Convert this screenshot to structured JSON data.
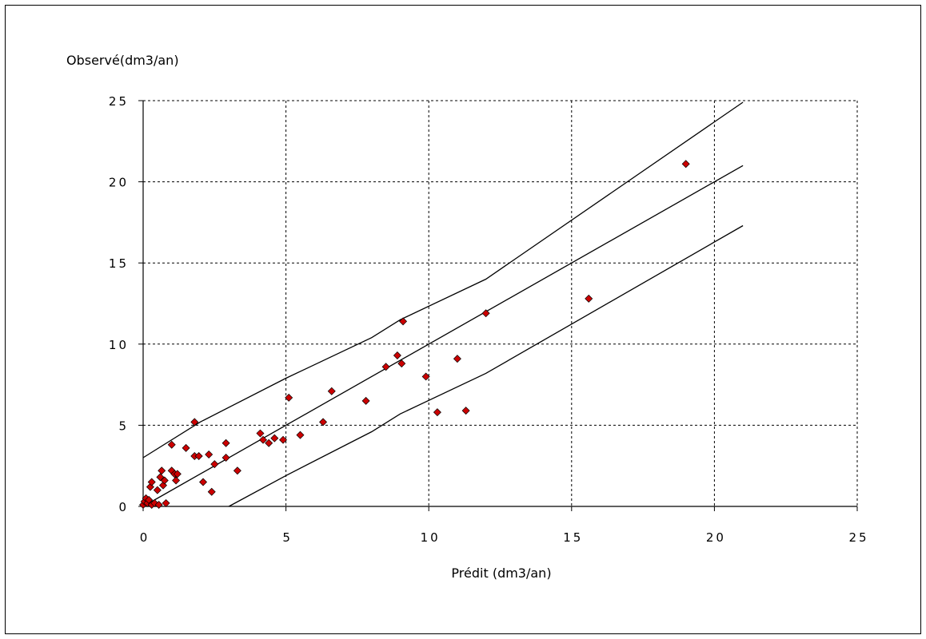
{
  "chart_data": {
    "type": "scatter",
    "title": "",
    "xlabel": "Prédit (dm3/an)",
    "ylabel": "Observé(dm3/an)",
    "xlim": [
      0,
      25
    ],
    "ylim": [
      0,
      25
    ],
    "x_ticks": [
      "0",
      "5",
      "10",
      "15",
      "20",
      "25"
    ],
    "y_ticks": [
      "0",
      "5",
      "10",
      "15",
      "20",
      "25"
    ],
    "grid": "dashed",
    "legend": "none",
    "colors": {
      "points": "#cc0000",
      "point_outline": "#000000",
      "lines": "#000000",
      "grid": "#000000"
    },
    "points": [
      {
        "x": 0.0,
        "y": 0.1
      },
      {
        "x": 0.05,
        "y": 0.3
      },
      {
        "x": 0.1,
        "y": 0.5
      },
      {
        "x": 0.15,
        "y": 0.2
      },
      {
        "x": 0.2,
        "y": 0.4
      },
      {
        "x": 0.25,
        "y": 1.2
      },
      {
        "x": 0.3,
        "y": 1.5
      },
      {
        "x": 0.3,
        "y": 0.1
      },
      {
        "x": 0.4,
        "y": 0.2
      },
      {
        "x": 0.5,
        "y": 1.0
      },
      {
        "x": 0.55,
        "y": 0.1
      },
      {
        "x": 0.6,
        "y": 1.8
      },
      {
        "x": 0.65,
        "y": 2.2
      },
      {
        "x": 0.7,
        "y": 1.3
      },
      {
        "x": 0.75,
        "y": 1.6
      },
      {
        "x": 0.8,
        "y": 0.2
      },
      {
        "x": 1.0,
        "y": 3.8
      },
      {
        "x": 1.0,
        "y": 2.2
      },
      {
        "x": 1.1,
        "y": 2.0
      },
      {
        "x": 1.15,
        "y": 1.6
      },
      {
        "x": 1.2,
        "y": 2.0
      },
      {
        "x": 1.5,
        "y": 3.6
      },
      {
        "x": 1.8,
        "y": 5.2
      },
      {
        "x": 1.8,
        "y": 3.1
      },
      {
        "x": 1.95,
        "y": 3.1
      },
      {
        "x": 2.1,
        "y": 1.5
      },
      {
        "x": 2.3,
        "y": 3.2
      },
      {
        "x": 2.4,
        "y": 0.9
      },
      {
        "x": 2.5,
        "y": 2.6
      },
      {
        "x": 2.9,
        "y": 3.9
      },
      {
        "x": 2.9,
        "y": 3.0
      },
      {
        "x": 3.3,
        "y": 2.2
      },
      {
        "x": 4.1,
        "y": 4.5
      },
      {
        "x": 4.2,
        "y": 4.1
      },
      {
        "x": 4.4,
        "y": 3.9
      },
      {
        "x": 4.6,
        "y": 4.2
      },
      {
        "x": 4.9,
        "y": 4.1
      },
      {
        "x": 5.1,
        "y": 6.7
      },
      {
        "x": 5.5,
        "y": 4.4
      },
      {
        "x": 6.3,
        "y": 5.2
      },
      {
        "x": 6.6,
        "y": 7.1
      },
      {
        "x": 7.8,
        "y": 6.5
      },
      {
        "x": 8.5,
        "y": 8.6
      },
      {
        "x": 8.9,
        "y": 9.3
      },
      {
        "x": 9.05,
        "y": 8.8
      },
      {
        "x": 9.1,
        "y": 11.4
      },
      {
        "x": 9.9,
        "y": 8.0
      },
      {
        "x": 10.3,
        "y": 5.8
      },
      {
        "x": 11.0,
        "y": 9.1
      },
      {
        "x": 11.3,
        "y": 5.9
      },
      {
        "x": 12.0,
        "y": 11.9
      },
      {
        "x": 15.6,
        "y": 12.8
      },
      {
        "x": 19.0,
        "y": 21.1
      }
    ],
    "lines": [
      {
        "x": [
          0,
          21.0
        ],
        "y": [
          0,
          21.0
        ]
      },
      {
        "x": [
          0,
          2.0,
          5.0,
          8.0,
          9.0,
          12.0,
          21.0
        ],
        "y": [
          3.0,
          5.2,
          7.9,
          10.4,
          11.5,
          14.0,
          24.9
        ]
      },
      {
        "x": [
          3.0,
          5.0,
          8.0,
          9.0,
          12.0,
          21.0
        ],
        "y": [
          0,
          1.9,
          4.6,
          5.7,
          8.2,
          17.3
        ]
      }
    ]
  }
}
